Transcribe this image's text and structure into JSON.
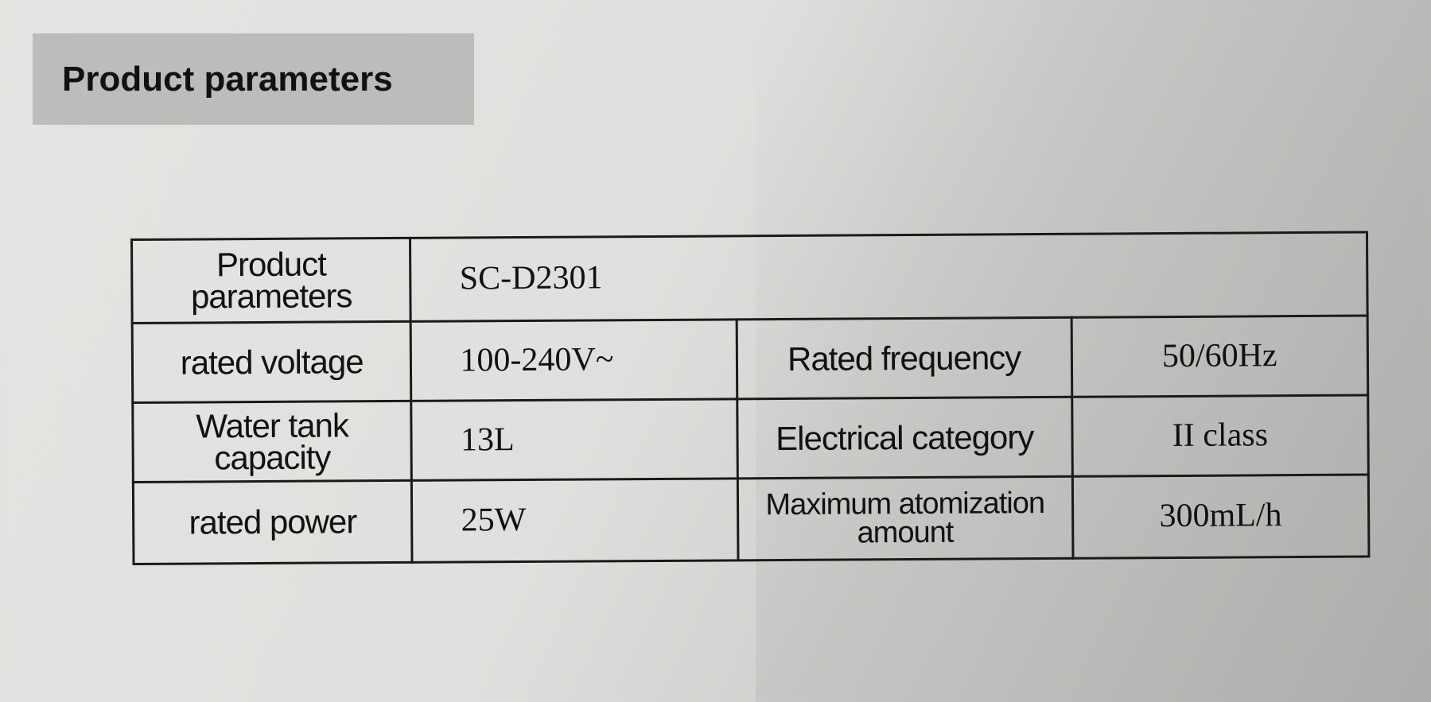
{
  "heading": "Product parameters",
  "table": {
    "model_label": "Product parameters",
    "model_value": "SC-D2301",
    "rows": [
      {
        "label": "rated voltage",
        "value": "100-240V~",
        "label2": "Rated frequency",
        "value2": "50/60Hz"
      },
      {
        "label": "Water tank capacity",
        "value": "13L",
        "label2": "Electrical category",
        "value2": "II class"
      },
      {
        "label": "rated power",
        "value": "25W",
        "label2": "Maximum atomization amount",
        "value2": "300mL/h"
      }
    ]
  }
}
